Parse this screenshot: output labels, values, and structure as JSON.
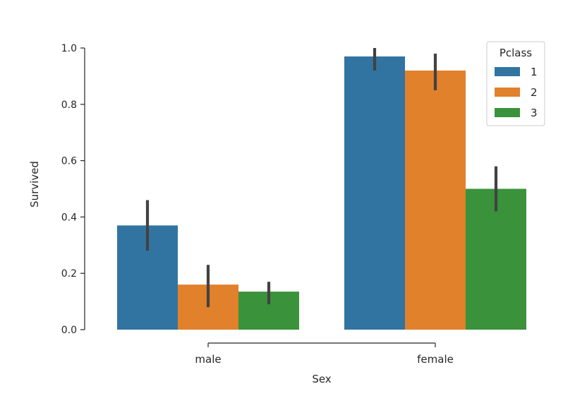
{
  "chart_data": {
    "type": "bar",
    "title": "",
    "xlabel": "Sex",
    "ylabel": "Survived",
    "ylim": [
      0,
      1.0
    ],
    "yticks": [
      0.0,
      0.2,
      0.4,
      0.6,
      0.8,
      1.0
    ],
    "ytick_labels": [
      "0.0",
      "0.2",
      "0.4",
      "0.6",
      "0.8",
      "1.0"
    ],
    "categories": [
      "male",
      "female"
    ],
    "series": [
      {
        "name": "1",
        "color": "#3274a1",
        "values": [
          0.37,
          0.97
        ],
        "ci_low": [
          0.28,
          0.92
        ],
        "ci_high": [
          0.46,
          1.0
        ]
      },
      {
        "name": "2",
        "color": "#e1812c",
        "values": [
          0.16,
          0.92
        ],
        "ci_low": [
          0.08,
          0.85
        ],
        "ci_high": [
          0.23,
          0.98
        ]
      },
      {
        "name": "3",
        "color": "#3a923a",
        "values": [
          0.135,
          0.5
        ],
        "ci_low": [
          0.09,
          0.42
        ],
        "ci_high": [
          0.17,
          0.58
        ]
      }
    ],
    "legend": {
      "title": "Pclass",
      "position": "top-right"
    },
    "grid": false
  }
}
